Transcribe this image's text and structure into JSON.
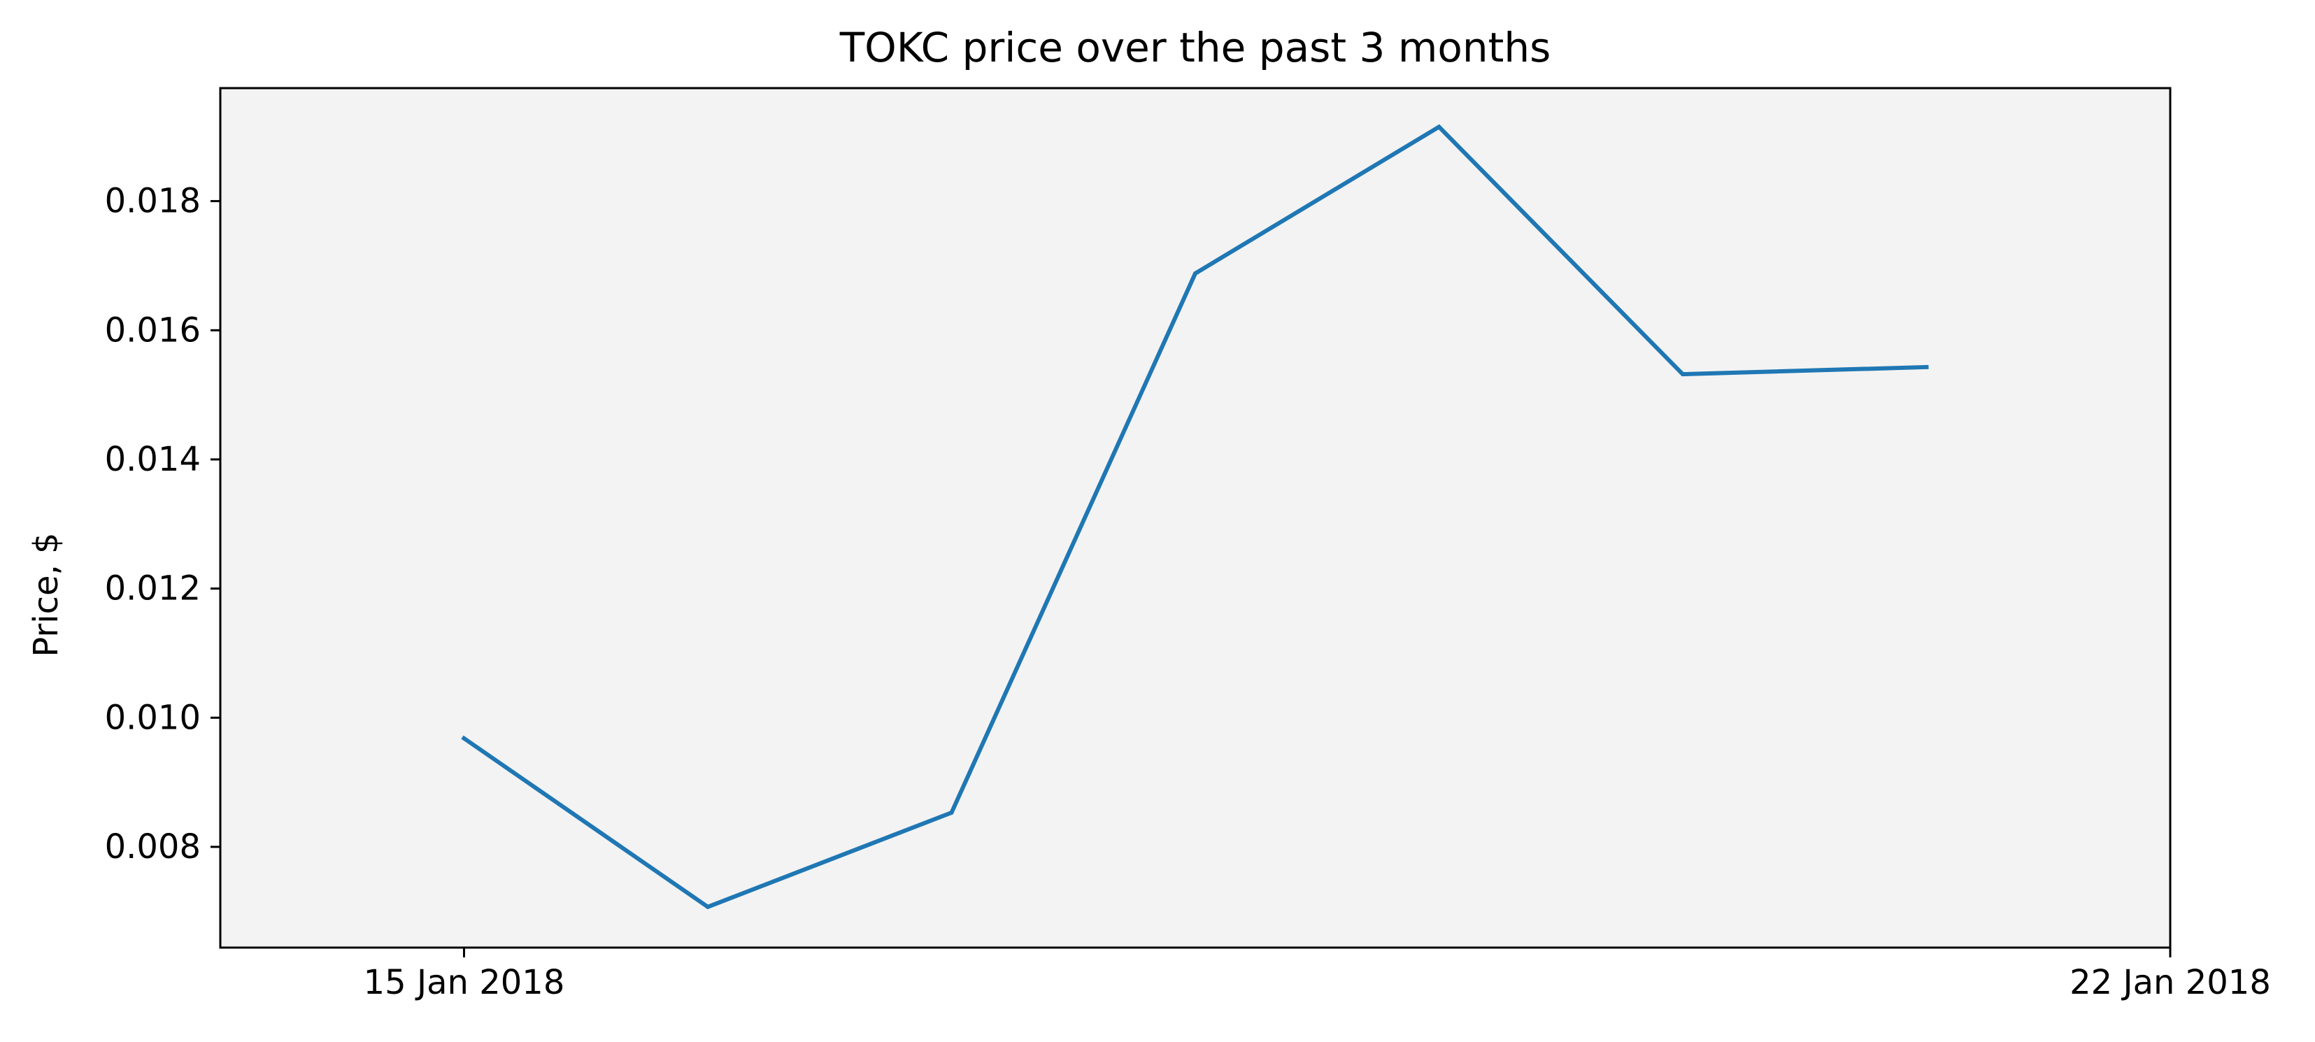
{
  "chart_data": {
    "type": "line",
    "title": "TOKC price over the past 3 months",
    "xlabel": "",
    "ylabel": "Price, $",
    "x": [
      "2018-01-15",
      "2018-01-16",
      "2018-01-17",
      "2018-01-18",
      "2018-01-19",
      "2018-01-20",
      "2018-01-21"
    ],
    "x_ticks": [
      {
        "value": "2018-01-15",
        "label": "15 Jan 2018"
      },
      {
        "value": "2018-01-22",
        "label": "22 Jan 2018"
      }
    ],
    "xlim": [
      "2018-01-14",
      "2018-01-22"
    ],
    "series": [
      {
        "values": [
          0.00968,
          0.00707,
          0.00853,
          0.01688,
          0.01915,
          0.01532,
          0.01543
        ],
        "color": "#1f77b4"
      }
    ],
    "ylim": [
      0.00644,
      0.01975
    ],
    "y_ticks": [
      0.008,
      0.01,
      0.012,
      0.014,
      0.016,
      0.018
    ],
    "y_tick_labels": [
      "0.008",
      "0.010",
      "0.012",
      "0.014",
      "0.016",
      "0.018"
    ],
    "grid": false,
    "plot_background": "#f3f3f3"
  }
}
